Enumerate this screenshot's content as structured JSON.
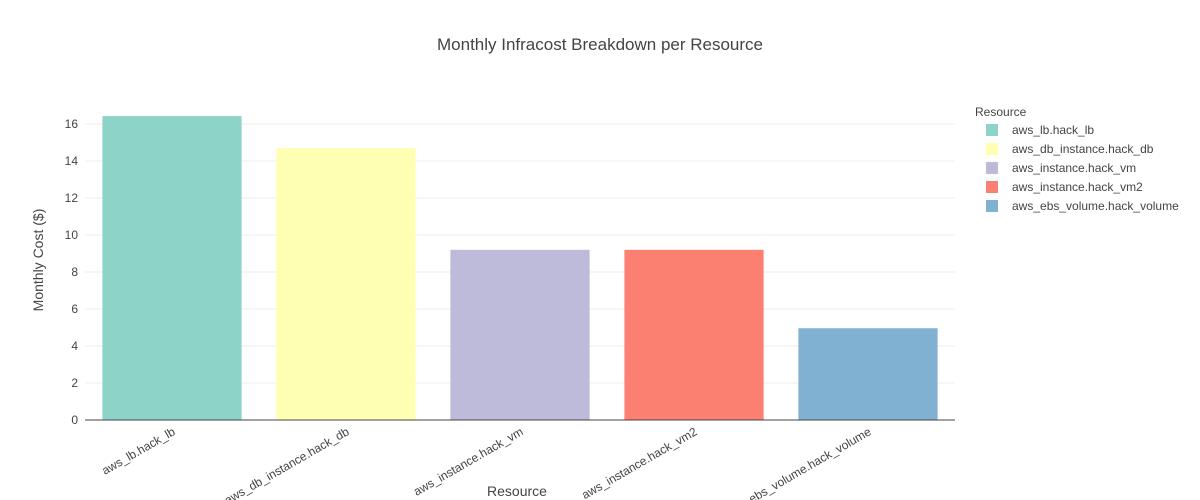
{
  "chart_data": {
    "type": "bar",
    "title": "Monthly Infracost Breakdown per Resource",
    "xlabel": "Resource",
    "ylabel": "Monthly Cost ($)",
    "categories": [
      "aws_lb.hack_lb",
      "aws_db_instance.hack_db",
      "aws_instance.hack_vm",
      "aws_instance.hack_vm2",
      "aws_ebs_volume.hack_volume"
    ],
    "values": [
      16.43,
      14.7,
      9.2,
      9.2,
      4.96
    ],
    "colors": [
      "#8dd3c7",
      "#ffffb3",
      "#bebada",
      "#fb8072",
      "#80b1d3"
    ],
    "ylim": [
      0,
      17.3
    ],
    "yticks": [
      0,
      2,
      4,
      6,
      8,
      10,
      12,
      14,
      16
    ],
    "grid": true,
    "legend": {
      "title": "Resource",
      "position": "right"
    }
  }
}
